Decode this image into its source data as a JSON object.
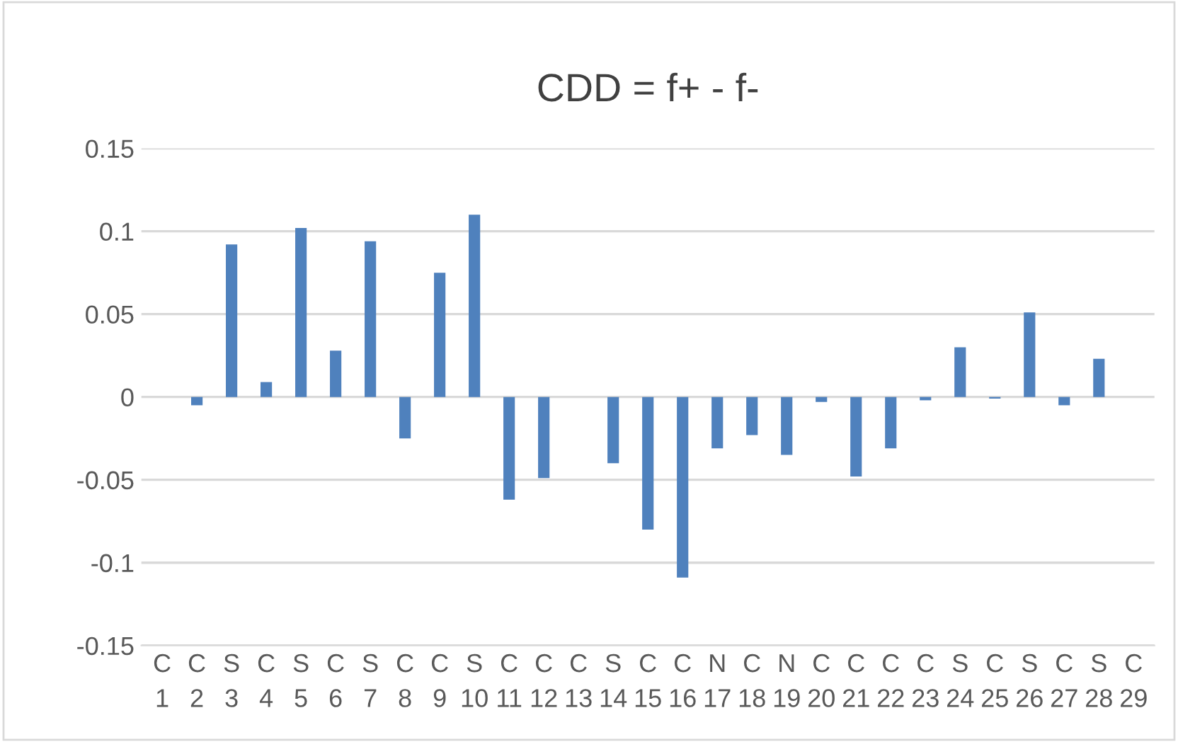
{
  "chart_data": {
    "type": "bar",
    "title": "CDD = f+ - f-",
    "categories": [
      "C\n1",
      "C\n2",
      "S\n3",
      "C\n4",
      "S\n5",
      "C\n6",
      "S\n7",
      "C\n8",
      "C\n9",
      "S\n10",
      "C\n11",
      "C\n12",
      "C\n13",
      "S\n14",
      "C\n15",
      "C\n16",
      "N\n17",
      "C\n18",
      "N\n19",
      "C\n20",
      "C\n21",
      "C\n22",
      "C\n23",
      "S\n24",
      "C\n25",
      "S\n26",
      "C\n27",
      "S\n28",
      "C\n29"
    ],
    "values": [
      0,
      -0.005,
      0.092,
      0.009,
      0.102,
      0.028,
      0.094,
      -0.025,
      0.075,
      0.11,
      -0.062,
      -0.049,
      0,
      -0.04,
      -0.08,
      -0.109,
      -0.031,
      -0.023,
      -0.035,
      -0.003,
      -0.048,
      -0.031,
      -0.002,
      0.03,
      -0.001,
      0.051,
      -0.005,
      0.023,
      0
    ],
    "color": "#4f81bd",
    "ylim": [
      -0.15,
      0.15
    ],
    "yticks": [
      -0.15,
      -0.1,
      -0.05,
      0,
      0.05,
      0.1,
      0.15
    ],
    "grid": "y",
    "legend": false
  }
}
